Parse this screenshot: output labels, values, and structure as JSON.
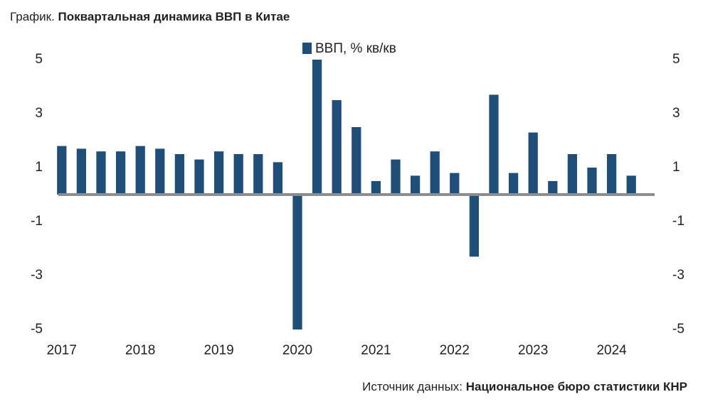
{
  "chart_data": {
    "type": "bar",
    "title_prefix": "График.",
    "title": "Поквартальная динамика ВВП в Китае",
    "source_label": "Источник данных:",
    "source": "Национальное бюро статистики КНР",
    "categories": [
      "2017",
      null,
      null,
      null,
      "2018",
      null,
      null,
      null,
      "2019",
      null,
      null,
      null,
      "2020",
      null,
      null,
      null,
      "2021",
      null,
      null,
      null,
      "2022",
      null,
      null,
      null,
      "2023",
      null,
      null,
      null,
      "2024",
      null
    ],
    "series": [
      {
        "name": "ВВП, % кв/кв",
        "color": "#1f4e79",
        "values": [
          1.8,
          1.7,
          1.6,
          1.6,
          1.8,
          1.7,
          1.5,
          1.3,
          1.6,
          1.5,
          1.5,
          1.2,
          -5,
          5,
          3.5,
          2.5,
          0.5,
          1.3,
          0.7,
          1.6,
          0.8,
          -2.3,
          3.7,
          0.8,
          2.3,
          0.5,
          1.5,
          1.0,
          1.5,
          0.7
        ]
      }
    ],
    "ylim": [
      -5,
      5
    ],
    "yticks": [
      5,
      3,
      1,
      -1,
      -3,
      -5
    ],
    "grid": false
  }
}
